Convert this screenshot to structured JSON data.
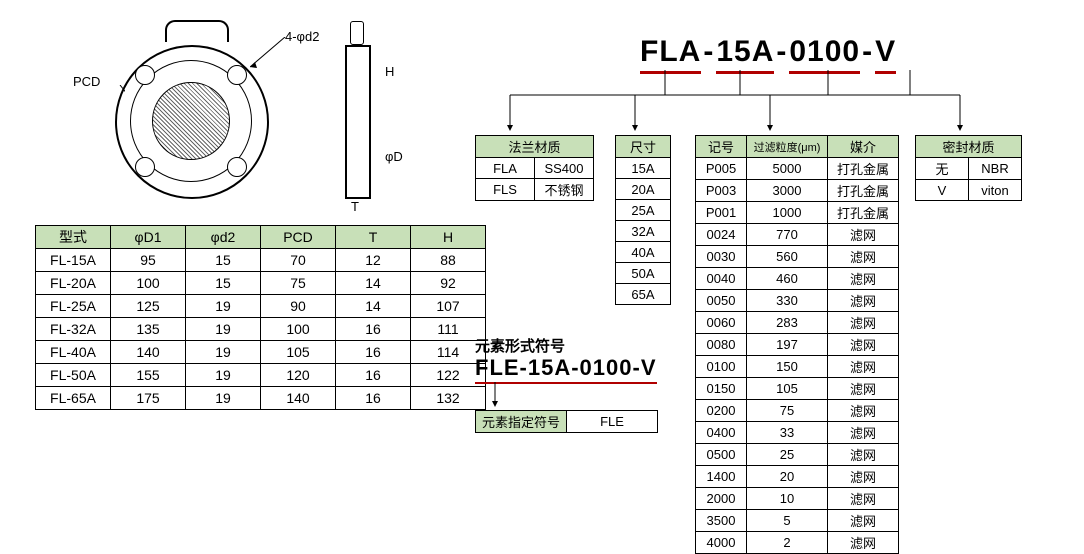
{
  "colors": {
    "header_bg": "#c8e0b8",
    "underline": "#b00000",
    "border": "#000000",
    "background": "#ffffff"
  },
  "diagram": {
    "label_pcd": "PCD",
    "label_d2": "4-φd2",
    "label_H": "H",
    "label_D": "φD",
    "label_T": "T"
  },
  "spec_table": {
    "columns": [
      "型式",
      "φD1",
      "φd2",
      "PCD",
      "T",
      "H"
    ],
    "rows": [
      [
        "FL-15A",
        "95",
        "15",
        "70",
        "12",
        "88"
      ],
      [
        "FL-20A",
        "100",
        "15",
        "75",
        "14",
        "92"
      ],
      [
        "FL-25A",
        "125",
        "19",
        "90",
        "14",
        "107"
      ],
      [
        "FL-32A",
        "135",
        "19",
        "100",
        "16",
        "111"
      ],
      [
        "FL-40A",
        "140",
        "19",
        "105",
        "16",
        "114"
      ],
      [
        "FL-50A",
        "155",
        "19",
        "120",
        "16",
        "122"
      ],
      [
        "FL-65A",
        "175",
        "19",
        "140",
        "16",
        "132"
      ]
    ]
  },
  "part_number": {
    "segments": [
      "FLA",
      "15A",
      "0100",
      "V"
    ]
  },
  "material_table": {
    "header": "法兰材质",
    "rows": [
      [
        "FLA",
        "SS400"
      ],
      [
        "FLS",
        "不锈钢"
      ]
    ]
  },
  "size_table": {
    "header": "尺寸",
    "rows": [
      "15A",
      "20A",
      "25A",
      "32A",
      "40A",
      "50A",
      "65A"
    ]
  },
  "filtration_table": {
    "headers": [
      "记号",
      "过滤粒度(μm)",
      "媒介"
    ],
    "rows": [
      [
        "P005",
        "5000",
        "打孔金属"
      ],
      [
        "P003",
        "3000",
        "打孔金属"
      ],
      [
        "P001",
        "1000",
        "打孔金属"
      ],
      [
        "0024",
        "770",
        "滤网"
      ],
      [
        "0030",
        "560",
        "滤网"
      ],
      [
        "0040",
        "460",
        "滤网"
      ],
      [
        "0050",
        "330",
        "滤网"
      ],
      [
        "0060",
        "283",
        "滤网"
      ],
      [
        "0080",
        "197",
        "滤网"
      ],
      [
        "0100",
        "150",
        "滤网"
      ],
      [
        "0150",
        "105",
        "滤网"
      ],
      [
        "0200",
        "75",
        "滤网"
      ],
      [
        "0400",
        "33",
        "滤网"
      ],
      [
        "0500",
        "25",
        "滤网"
      ],
      [
        "1400",
        "20",
        "滤网"
      ],
      [
        "2000",
        "10",
        "滤网"
      ],
      [
        "3500",
        "5",
        "滤网"
      ],
      [
        "4000",
        "2",
        "滤网"
      ]
    ]
  },
  "seal_table": {
    "header": "密封材质",
    "rows": [
      [
        "无",
        "NBR"
      ],
      [
        "V",
        "viton"
      ]
    ]
  },
  "element_section": {
    "title": "元素形式符号",
    "part_number": "FLE-15A-0100-V",
    "table_header": "元素指定符号",
    "table_value": "FLE"
  }
}
